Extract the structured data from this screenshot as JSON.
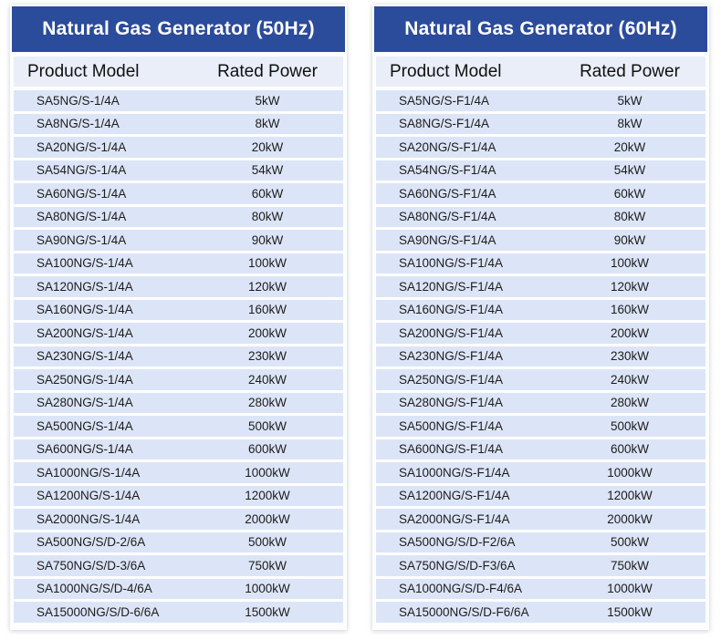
{
  "colors": {
    "page_bg": "#ffffff",
    "header_blue": "#2b4b9b",
    "column_header_bg": "#e9eef9",
    "row_bg": "#dce5f7",
    "title_text": "#ffffff",
    "body_text": "#1c1c1c"
  },
  "tables": [
    {
      "id": "50hz",
      "title": "Natural Gas Generator (50Hz)",
      "columns": [
        "Product Model",
        "Rated Power"
      ],
      "rows": [
        [
          "SA5NG/S-1/4A",
          "5kW"
        ],
        [
          "SA8NG/S-1/4A",
          "8kW"
        ],
        [
          "SA20NG/S-1/4A",
          "20kW"
        ],
        [
          "SA54NG/S-1/4A",
          "54kW"
        ],
        [
          "SA60NG/S-1/4A",
          "60kW"
        ],
        [
          "SA80NG/S-1/4A",
          "80kW"
        ],
        [
          "SA90NG/S-1/4A",
          "90kW"
        ],
        [
          "SA100NG/S-1/4A",
          "100kW"
        ],
        [
          "SA120NG/S-1/4A",
          "120kW"
        ],
        [
          "SA160NG/S-1/4A",
          "160kW"
        ],
        [
          "SA200NG/S-1/4A",
          "200kW"
        ],
        [
          "SA230NG/S-1/4A",
          "230kW"
        ],
        [
          "SA250NG/S-1/4A",
          "240kW"
        ],
        [
          "SA280NG/S-1/4A",
          "280kW"
        ],
        [
          "SA500NG/S-1/4A",
          "500kW"
        ],
        [
          "SA600NG/S-1/4A",
          "600kW"
        ],
        [
          "SA1000NG/S-1/4A",
          "1000kW"
        ],
        [
          "SA1200NG/S-1/4A",
          "1200kW"
        ],
        [
          "SA2000NG/S-1/4A",
          "2000kW"
        ],
        [
          "SA500NG/S/D-2/6A",
          "500kW"
        ],
        [
          "SA750NG/S/D-3/6A",
          "750kW"
        ],
        [
          "SA1000NG/S/D-4/6A",
          "1000kW"
        ],
        [
          "SA15000NG/S/D-6/6A",
          "1500kW"
        ]
      ]
    },
    {
      "id": "60hz",
      "title": "Natural Gas Generator (60Hz)",
      "columns": [
        "Product Model",
        "Rated Power"
      ],
      "rows": [
        [
          "SA5NG/S-F1/4A",
          "5kW"
        ],
        [
          "SA8NG/S-F1/4A",
          "8kW"
        ],
        [
          "SA20NG/S-F1/4A",
          "20kW"
        ],
        [
          "SA54NG/S-F1/4A",
          "54kW"
        ],
        [
          "SA60NG/S-F1/4A",
          "60kW"
        ],
        [
          "SA80NG/S-F1/4A",
          "80kW"
        ],
        [
          "SA90NG/S-F1/4A",
          "90kW"
        ],
        [
          "SA100NG/S-F1/4A",
          "100kW"
        ],
        [
          "SA120NG/S-F1/4A",
          "120kW"
        ],
        [
          "SA160NG/S-F1/4A",
          "160kW"
        ],
        [
          "SA200NG/S-F1/4A",
          "200kW"
        ],
        [
          "SA230NG/S-F1/4A",
          "230kW"
        ],
        [
          "SA250NG/S-F1/4A",
          "240kW"
        ],
        [
          "SA280NG/S-F1/4A",
          "280kW"
        ],
        [
          "SA500NG/S-F1/4A",
          "500kW"
        ],
        [
          "SA600NG/S-F1/4A",
          "600kW"
        ],
        [
          "SA1000NG/S-F1/4A",
          "1000kW"
        ],
        [
          "SA1200NG/S-F1/4A",
          "1200kW"
        ],
        [
          "SA2000NG/S-F1/4A",
          "2000kW"
        ],
        [
          "SA500NG/S/D-F2/6A",
          "500kW"
        ],
        [
          "SA750NG/S/D-F3/6A",
          "750kW"
        ],
        [
          "SA1000NG/S/D-F4/6A",
          "1000kW"
        ],
        [
          "SA15000NG/S/D-F6/6A",
          "1500kW"
        ]
      ]
    }
  ]
}
